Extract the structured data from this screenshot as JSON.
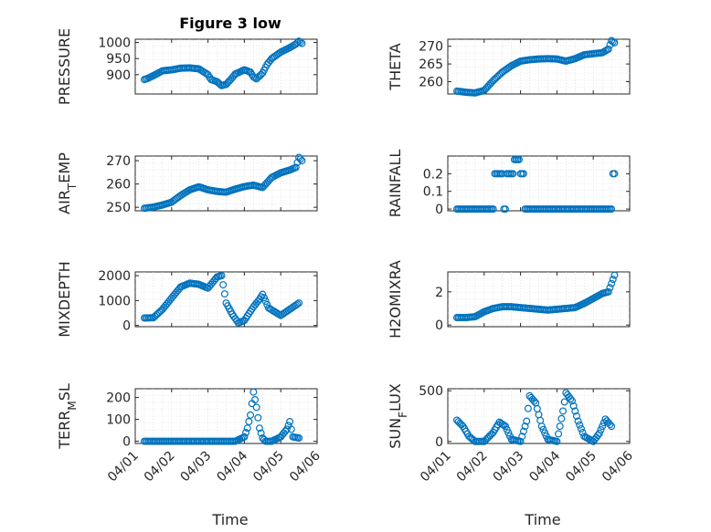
{
  "title": "Figure 3 low",
  "xlabel": "Time",
  "x_tick_labels": [
    "04/01",
    "04/02",
    "04/03",
    "04/04",
    "04/05",
    "04/06"
  ],
  "marker_color": "#0072BD",
  "chart_data": [
    {
      "type": "scatter",
      "ylabel": "PRESSURE",
      "ylim": [
        840,
        1010
      ],
      "yticks": [
        900,
        950,
        1000
      ],
      "yticklabels": [
        "900",
        "950",
        "1000"
      ],
      "x": [
        "2019-04-01 06:00",
        "2019-04-01 08:00",
        "2019-04-01 12:00",
        "2019-04-01 18:00",
        "2019-04-02 00:00",
        "2019-04-02 06:00",
        "2019-04-02 12:00",
        "2019-04-02 18:00",
        "2019-04-03 00:00",
        "2019-04-03 02:00",
        "2019-04-03 06:00",
        "2019-04-03 09:00",
        "2019-04-03 12:00",
        "2019-04-03 15:00",
        "2019-04-03 18:00",
        "2019-04-04 00:00",
        "2019-04-04 04:00",
        "2019-04-04 06:00",
        "2019-04-04 08:00",
        "2019-04-04 12:00",
        "2019-04-04 15:00",
        "2019-04-04 18:00",
        "2019-04-05 00:00",
        "2019-04-05 06:00",
        "2019-04-05 10:00",
        "2019-04-05 12:00",
        "2019-04-05 14:00"
      ],
      "y": [
        885,
        888,
        897,
        912,
        915,
        920,
        921,
        918,
        900,
        885,
        878,
        866,
        870,
        885,
        902,
        915,
        908,
        893,
        887,
        905,
        932,
        950,
        970,
        984,
        995,
        1004,
        997
      ]
    },
    {
      "type": "scatter",
      "ylabel": "THETA",
      "ylim": [
        256.5,
        272
      ],
      "yticks": [
        260,
        265,
        270
      ],
      "yticklabels": [
        "260",
        "265",
        "270"
      ],
      "x": [
        "2019-04-01 06:00",
        "2019-04-01 12:00",
        "2019-04-01 18:00",
        "2019-04-02 00:00",
        "2019-04-02 06:00",
        "2019-04-02 12:00",
        "2019-04-02 18:00",
        "2019-04-03 00:00",
        "2019-04-03 06:00",
        "2019-04-03 12:00",
        "2019-04-03 18:00",
        "2019-04-04 00:00",
        "2019-04-04 06:00",
        "2019-04-04 12:00",
        "2019-04-04 18:00",
        "2019-04-05 00:00",
        "2019-04-05 06:00",
        "2019-04-05 10:00",
        "2019-04-05 12:00",
        "2019-04-05 14:00"
      ],
      "y": [
        257.3,
        257.0,
        256.8,
        257.5,
        260.3,
        262.7,
        264.5,
        265.8,
        266.2,
        266.4,
        266.5,
        266.4,
        265.8,
        266.5,
        267.6,
        267.9,
        268.2,
        269.2,
        271.6,
        271.0
      ]
    },
    {
      "type": "scatter",
      "ylabel": "AIR_TEMP",
      "ylim": [
        248.5,
        272
      ],
      "yticks": [
        250,
        260,
        270
      ],
      "yticklabels": [
        "250",
        "260",
        "270"
      ],
      "x": [
        "2019-04-01 06:00",
        "2019-04-01 12:00",
        "2019-04-01 18:00",
        "2019-04-02 00:00",
        "2019-04-02 06:00",
        "2019-04-02 12:00",
        "2019-04-02 18:00",
        "2019-04-03 00:00",
        "2019-04-03 06:00",
        "2019-04-03 12:00",
        "2019-04-03 18:00",
        "2019-04-04 00:00",
        "2019-04-04 06:00",
        "2019-04-04 12:00",
        "2019-04-04 18:00",
        "2019-04-05 00:00",
        "2019-04-05 06:00",
        "2019-04-05 10:00",
        "2019-04-05 12:00",
        "2019-04-05 14:00"
      ],
      "y": [
        249.6,
        250.1,
        251.0,
        252.2,
        255.1,
        257.5,
        258.8,
        257.5,
        256.8,
        256.5,
        257.8,
        258.9,
        259.5,
        258.5,
        262.8,
        264.8,
        266.0,
        267.1,
        271.4,
        270.0
      ]
    },
    {
      "type": "scatter",
      "ylabel": "RAINFALL",
      "ylim": [
        -0.01,
        0.3
      ],
      "yticks": [
        0,
        0.1,
        0.2
      ],
      "yticklabels": [
        "0",
        "0.1",
        "0.2"
      ],
      "x": [
        "2019-04-01 06:00",
        "2019-04-01 12:00",
        "2019-04-01 18:00",
        "2019-04-02 00:00",
        "2019-04-02 06:00",
        "2019-04-02 08:00",
        "2019-04-02 12:00",
        "2019-04-02 14:00",
        "2019-04-02 16:00",
        "2019-04-02 18:00",
        "2019-04-02 22:00",
        "2019-04-03 02:00",
        "2019-04-03 04:00",
        "2019-04-03 12:00",
        "2019-04-03 18:00",
        "2019-04-04 00:00",
        "2019-04-04 06:00",
        "2019-04-04 12:00",
        "2019-04-04 18:00",
        "2019-04-05 00:00",
        "2019-04-05 06:00",
        "2019-04-05 12:00",
        "2019-04-05 14:00"
      ],
      "y": [
        0,
        0,
        0,
        0,
        0,
        0.2,
        0.2,
        0,
        0.2,
        0.2,
        0.28,
        0.2,
        0,
        0,
        0,
        0,
        0,
        0,
        0,
        0,
        0,
        0,
        0.2
      ]
    },
    {
      "type": "scatter",
      "ylabel": "MIXDEPTH",
      "ylim": [
        -50,
        2150
      ],
      "yticks": [
        0,
        1000,
        2000
      ],
      "yticklabels": [
        "0",
        "1000",
        "2000"
      ],
      "x": [
        "2019-04-01 06:00",
        "2019-04-01 12:00",
        "2019-04-01 18:00",
        "2019-04-02 00:00",
        "2019-04-02 06:00",
        "2019-04-02 12:00",
        "2019-04-02 18:00",
        "2019-04-03 00:00",
        "2019-04-03 06:00",
        "2019-04-03 09:00",
        "2019-04-03 12:00",
        "2019-04-03 16:00",
        "2019-04-03 20:00",
        "2019-04-04 00:00",
        "2019-04-04 06:00",
        "2019-04-04 10:00",
        "2019-04-04 12:00",
        "2019-04-04 16:00",
        "2019-04-05 00:00",
        "2019-04-05 06:00",
        "2019-04-05 12:00"
      ],
      "y": [
        300,
        310,
        650,
        1100,
        1550,
        1700,
        1650,
        1500,
        1950,
        2000,
        900,
        450,
        100,
        200,
        750,
        1050,
        1250,
        700,
        400,
        650,
        900
      ]
    },
    {
      "type": "scatter",
      "ylabel": "H2OMIXRA",
      "ylim": [
        -0.1,
        3.2
      ],
      "yticks": [
        0,
        2
      ],
      "yticklabels": [
        "0",
        "2"
      ],
      "x": [
        "2019-04-01 06:00",
        "2019-04-01 12:00",
        "2019-04-01 18:00",
        "2019-04-02 00:00",
        "2019-04-02 06:00",
        "2019-04-02 12:00",
        "2019-04-02 18:00",
        "2019-04-03 00:00",
        "2019-04-03 06:00",
        "2019-04-03 12:00",
        "2019-04-03 18:00",
        "2019-04-04 00:00",
        "2019-04-04 06:00",
        "2019-04-04 12:00",
        "2019-04-04 18:00",
        "2019-04-05 00:00",
        "2019-04-05 06:00",
        "2019-04-05 10:00",
        "2019-04-05 12:00",
        "2019-04-05 14:00"
      ],
      "y": [
        0.45,
        0.45,
        0.5,
        0.8,
        1.0,
        1.1,
        1.1,
        1.05,
        1.0,
        0.95,
        0.9,
        0.95,
        1.0,
        1.05,
        1.3,
        1.6,
        1.9,
        2.0,
        2.5,
        3.0
      ]
    },
    {
      "type": "scatter",
      "ylabel": "TERR_MSL",
      "ylim": [
        -10,
        240
      ],
      "yticks": [
        0,
        100,
        200
      ],
      "yticklabels": [
        "0",
        "100",
        "200"
      ],
      "x": [
        "2019-04-01 06:00",
        "2019-04-01 12:00",
        "2019-04-02 00:00",
        "2019-04-02 12:00",
        "2019-04-03 00:00",
        "2019-04-03 12:00",
        "2019-04-03 18:00",
        "2019-04-04 00:00",
        "2019-04-04 02:00",
        "2019-04-04 04:00",
        "2019-04-04 06:00",
        "2019-04-04 08:00",
        "2019-04-04 10:00",
        "2019-04-04 12:00",
        "2019-04-04 14:00",
        "2019-04-04 18:00",
        "2019-04-05 00:00",
        "2019-04-05 04:00",
        "2019-04-05 06:00",
        "2019-04-05 08:00",
        "2019-04-05 12:00"
      ],
      "y": [
        0,
        0,
        0,
        0,
        0,
        0,
        0,
        20,
        60,
        120,
        225,
        155,
        60,
        15,
        0,
        0,
        20,
        55,
        90,
        20,
        15
      ]
    },
    {
      "type": "scatter",
      "ylabel": "SUN_FLUX",
      "ylim": [
        -20,
        520
      ],
      "yticks": [
        0,
        500
      ],
      "yticklabels": [
        "0",
        "500"
      ],
      "x": [
        "2019-04-01 06:00",
        "2019-04-01 10:00",
        "2019-04-01 14:00",
        "2019-04-01 18:00",
        "2019-04-02 00:00",
        "2019-04-02 06:00",
        "2019-04-02 10:00",
        "2019-04-02 14:00",
        "2019-04-02 18:00",
        "2019-04-03 00:00",
        "2019-04-03 04:00",
        "2019-04-03 06:00",
        "2019-04-03 10:00",
        "2019-04-03 14:00",
        "2019-04-03 18:00",
        "2019-04-04 00:00",
        "2019-04-04 04:00",
        "2019-04-04 06:00",
        "2019-04-04 10:00",
        "2019-04-04 14:00",
        "2019-04-04 18:00",
        "2019-04-05 00:00",
        "2019-04-05 04:00",
        "2019-04-05 08:00",
        "2019-04-05 12:00"
      ],
      "y": [
        210,
        150,
        50,
        0,
        0,
        90,
        190,
        150,
        20,
        0,
        200,
        450,
        380,
        150,
        20,
        0,
        300,
        480,
        400,
        200,
        50,
        0,
        80,
        220,
        150
      ]
    }
  ]
}
